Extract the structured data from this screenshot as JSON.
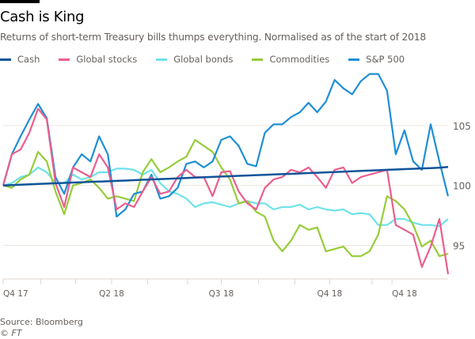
{
  "header": {
    "title": "Cash is King",
    "subtitle": "Returns of short-term Treasury bills thumps everything. Normalised as of the start of 2018"
  },
  "footer": {
    "source": "Source: Bloomberg",
    "copyright": "© FT"
  },
  "chart_data": {
    "type": "line",
    "title": "Cash is King",
    "subtitle": "Returns of short-term Treasury bills thumps everything. Normalised as of the start of 2018",
    "xlabel": "",
    "ylabel": "",
    "ylim": [
      92.2,
      109.8
    ],
    "yticks": [
      95,
      100,
      105
    ],
    "y_axis_side": "right",
    "grid": true,
    "legend_position": "top",
    "x_tick_marks": [
      "2018-01-01",
      "2018-01-31",
      "2018-02-28",
      "2018-03-29",
      "2018-04-27",
      "2018-05-29",
      "2018-06-25",
      "2018-07-25",
      "2018-08-23",
      "2018-09-20",
      "2018-10-24",
      "2018-11-09"
    ],
    "x_tick_labels": [
      {
        "date": "2018-01-01",
        "label": "Q4 17"
      },
      {
        "date": "2018-03-29",
        "label": "Q2 18"
      },
      {
        "date": "2018-06-25",
        "label": "Q3 18"
      },
      {
        "date": "2018-09-20",
        "label": "Q4 18"
      },
      {
        "date": "2018-11-09",
        "label": "Q4 18"
      }
    ],
    "x": [
      "2018-01-01",
      "2018-01-08",
      "2018-01-15",
      "2018-01-22",
      "2018-01-29",
      "2018-02-05",
      "2018-02-12",
      "2018-02-19",
      "2018-02-26",
      "2018-03-05",
      "2018-03-12",
      "2018-03-19",
      "2018-03-26",
      "2018-04-02",
      "2018-04-09",
      "2018-04-16",
      "2018-04-23",
      "2018-04-30",
      "2018-05-07",
      "2018-05-14",
      "2018-05-21",
      "2018-05-28",
      "2018-06-04",
      "2018-06-11",
      "2018-06-18",
      "2018-06-25",
      "2018-07-02",
      "2018-07-09",
      "2018-07-16",
      "2018-07-23",
      "2018-07-30",
      "2018-08-06",
      "2018-08-13",
      "2018-08-20",
      "2018-08-27",
      "2018-09-03",
      "2018-09-10",
      "2018-09-17",
      "2018-09-24",
      "2018-10-01",
      "2018-10-08",
      "2018-10-15",
      "2018-10-22",
      "2018-10-29",
      "2018-11-05",
      "2018-11-12",
      "2018-11-19",
      "2018-11-26",
      "2018-12-03",
      "2018-12-10",
      "2018-12-17",
      "2018-12-24"
    ],
    "series": [
      {
        "name": "Cash",
        "color": "#0f5499",
        "values": [
          100.0,
          100.03,
          100.06,
          100.09,
          100.12,
          100.15,
          100.18,
          100.21,
          100.24,
          100.27,
          100.3,
          100.32,
          100.35,
          100.38,
          100.41,
          100.44,
          100.47,
          100.5,
          100.53,
          100.56,
          100.59,
          100.62,
          100.65,
          100.68,
          100.71,
          100.74,
          100.77,
          100.8,
          100.83,
          100.86,
          100.89,
          100.92,
          100.94,
          100.97,
          101.0,
          101.03,
          101.06,
          101.09,
          101.12,
          101.15,
          101.18,
          101.21,
          101.24,
          101.27,
          101.3,
          101.33,
          101.36,
          101.39,
          101.42,
          101.45,
          101.48,
          101.55
        ]
      },
      {
        "name": "Global stocks",
        "color": "#eb5e8d",
        "values": [
          100.0,
          102.6,
          103.0,
          104.4,
          106.4,
          105.5,
          100.2,
          98.2,
          101.5,
          101.1,
          100.7,
          102.6,
          101.5,
          98.0,
          98.5,
          98.2,
          99.5,
          100.7,
          99.3,
          99.5,
          100.7,
          101.3,
          100.7,
          100.7,
          99.1,
          101.1,
          101.2,
          99.5,
          98.5,
          98.0,
          99.8,
          100.5,
          100.7,
          101.3,
          101.1,
          101.5,
          100.7,
          99.8,
          101.3,
          101.5,
          100.2,
          100.7,
          100.9,
          101.1,
          101.3,
          96.7,
          96.3,
          95.9,
          93.2,
          94.9,
          97.2,
          92.6
        ]
      },
      {
        "name": "Global bonds",
        "color": "#6fe2ea",
        "values": [
          100.0,
          100.2,
          100.7,
          100.9,
          101.5,
          101.1,
          100.2,
          100.2,
          100.9,
          100.5,
          100.7,
          101.1,
          101.1,
          101.4,
          101.4,
          101.3,
          100.9,
          101.3,
          100.2,
          99.5,
          99.3,
          98.9,
          98.2,
          98.5,
          98.6,
          98.4,
          98.2,
          98.5,
          98.7,
          98.5,
          98.5,
          98.0,
          98.2,
          98.2,
          98.4,
          98.0,
          98.2,
          98.0,
          97.9,
          98.0,
          97.6,
          97.7,
          97.6,
          96.7,
          96.7,
          97.2,
          97.2,
          96.9,
          96.7,
          96.7,
          96.6,
          97.2
        ]
      },
      {
        "name": "Commodities",
        "color": "#96cc39",
        "values": [
          100.0,
          99.8,
          100.5,
          100.9,
          102.8,
          102.0,
          99.5,
          97.6,
          100.0,
          100.2,
          100.5,
          99.8,
          98.9,
          99.1,
          98.9,
          98.7,
          101.1,
          102.2,
          101.1,
          101.5,
          102.0,
          102.4,
          103.8,
          103.3,
          102.8,
          101.5,
          100.5,
          98.5,
          98.7,
          97.8,
          97.4,
          95.4,
          94.5,
          95.4,
          96.7,
          96.3,
          96.5,
          94.5,
          94.7,
          94.9,
          94.1,
          94.1,
          94.5,
          95.9,
          99.1,
          98.7,
          98.0,
          96.7,
          94.9,
          95.4,
          94.1,
          94.3
        ]
      },
      {
        "name": "S&P 500",
        "color": "#1e8fd5",
        "values": [
          100.0,
          102.6,
          104.1,
          105.5,
          106.8,
          105.6,
          100.7,
          99.3,
          101.5,
          102.6,
          102.0,
          104.1,
          102.6,
          97.4,
          98.0,
          99.3,
          99.5,
          100.9,
          98.9,
          99.1,
          99.8,
          101.8,
          102.0,
          101.5,
          102.0,
          103.8,
          104.1,
          103.3,
          101.8,
          101.6,
          104.4,
          105.1,
          105.1,
          105.7,
          106.1,
          106.9,
          106.1,
          107.0,
          108.8,
          108.1,
          107.6,
          108.7,
          109.3,
          109.3,
          107.9,
          102.6,
          104.6,
          102.0,
          101.3,
          105.1,
          102.0,
          99.1
        ]
      }
    ]
  }
}
